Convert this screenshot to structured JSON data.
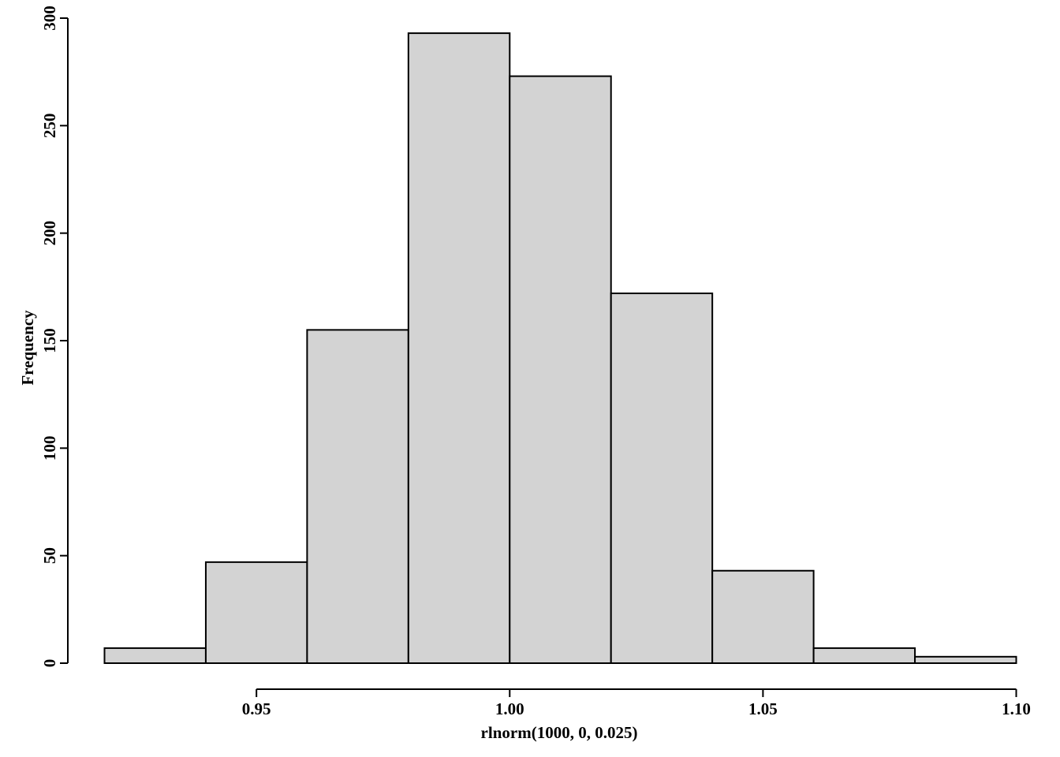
{
  "chart_data": {
    "type": "bar",
    "title": "",
    "xlabel": "rlnorm(1000, 0, 0.025)",
    "ylabel": "Frequency",
    "bins": [
      {
        "x0": 0.92,
        "x1": 0.94,
        "count": 7
      },
      {
        "x0": 0.94,
        "x1": 0.96,
        "count": 47
      },
      {
        "x0": 0.96,
        "x1": 0.98,
        "count": 155
      },
      {
        "x0": 0.98,
        "x1": 1.0,
        "count": 293
      },
      {
        "x0": 1.0,
        "x1": 1.02,
        "count": 273
      },
      {
        "x0": 1.02,
        "x1": 1.04,
        "count": 172
      },
      {
        "x0": 1.04,
        "x1": 1.06,
        "count": 43
      },
      {
        "x0": 1.06,
        "x1": 1.08,
        "count": 7
      },
      {
        "x0": 1.08,
        "x1": 1.1,
        "count": 3
      }
    ],
    "xlim": [
      0.92,
      1.1
    ],
    "ylim": [
      0,
      300
    ],
    "x_ticks": [
      {
        "value": 0.95,
        "label": "0.95"
      },
      {
        "value": 1.0,
        "label": "1.00"
      },
      {
        "value": 1.05,
        "label": "1.05"
      },
      {
        "value": 1.1,
        "label": "1.10"
      }
    ],
    "y_ticks": [
      {
        "value": 0,
        "label": "0"
      },
      {
        "value": 50,
        "label": "50"
      },
      {
        "value": 100,
        "label": "100"
      },
      {
        "value": 150,
        "label": "150"
      },
      {
        "value": 200,
        "label": "200"
      },
      {
        "value": 250,
        "label": "250"
      },
      {
        "value": 300,
        "label": "300"
      }
    ],
    "grid": false,
    "bar_color": "#d3d3d3",
    "edge_color": "#000000"
  }
}
